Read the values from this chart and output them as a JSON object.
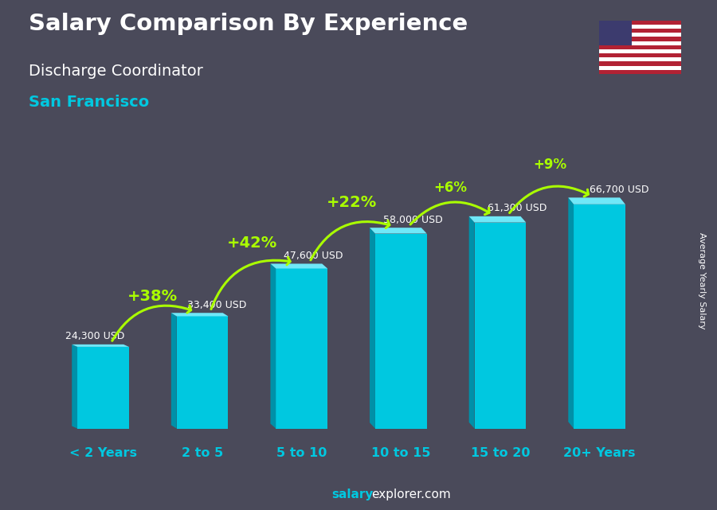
{
  "title_line1": "Salary Comparison By Experience",
  "title_line2": "Discharge Coordinator",
  "title_line3": "San Francisco",
  "categories": [
    "< 2 Years",
    "2 to 5",
    "5 to 10",
    "10 to 15",
    "15 to 20",
    "20+ Years"
  ],
  "values": [
    24300,
    33400,
    47600,
    58000,
    61300,
    66700
  ],
  "labels_usd": [
    "24,300 USD",
    "33,400 USD",
    "47,600 USD",
    "58,000 USD",
    "61,300 USD",
    "66,700 USD"
  ],
  "pct_labels": [
    "+38%",
    "+42%",
    "+22%",
    "+6%",
    "+9%"
  ],
  "bar_color_main": "#00C8E0",
  "bar_color_left": "#0090A8",
  "bar_color_top": "#70E8F8",
  "bg_color": "#4a4a5a",
  "title1_color": "#FFFFFF",
  "title2_color": "#FFFFFF",
  "title3_color": "#00C8E0",
  "label_color": "#FFFFFF",
  "pct_color": "#AAFF00",
  "footer_salary_color": "#00C8E0",
  "footer_rest_color": "#FFFFFF",
  "ylabel_text": "Average Yearly Salary",
  "ylim_max": 85000,
  "cat_label_color": "#00C8E0"
}
